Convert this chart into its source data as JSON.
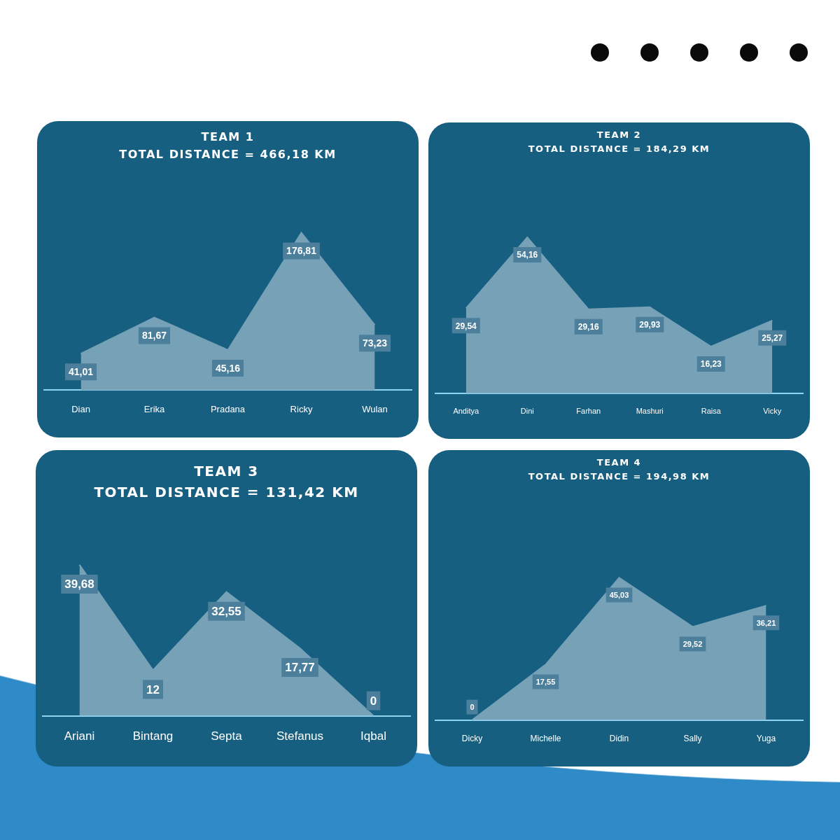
{
  "chart_data": [
    {
      "type": "area",
      "title": "TEAM 1",
      "subtitle": "TOTAL DISTANCE = 466,18 KM",
      "categories": [
        "Dian",
        "Erika",
        "Pradana",
        "Ricky",
        "Wulan"
      ],
      "values": [
        41.01,
        81.67,
        45.16,
        176.81,
        73.23
      ],
      "value_labels": [
        "41,01",
        "81,67",
        "45,16",
        "176,81",
        "73,23"
      ],
      "color": "#76a1b6",
      "grid": false,
      "legend": false,
      "marker": "none",
      "tick_labels": "x"
    },
    {
      "type": "area",
      "title": "TEAM 2",
      "subtitle": "TOTAL DISTANCE = 184,29 KM",
      "categories": [
        "Anditya",
        "Dini",
        "Farhan",
        "Mashuri",
        "Raisa",
        "Vicky"
      ],
      "values": [
        29.54,
        54.16,
        29.16,
        29.93,
        16.23,
        25.27
      ],
      "value_labels": [
        "29,54",
        "54,16",
        "29,16",
        "29,93",
        "16,23",
        "25,27"
      ],
      "color": "#76a1b6",
      "grid": false,
      "legend": false,
      "marker": "none",
      "tick_labels": "x"
    },
    {
      "type": "area",
      "title": "TEAM 3",
      "subtitle": "TOTAL DISTANCE = 131,42 KM",
      "categories": [
        "Ariani",
        "Bintang",
        "Septa",
        "Stefanus",
        "Iqbal"
      ],
      "values": [
        39.68,
        12,
        32.55,
        17.77,
        0
      ],
      "value_labels": [
        "39,68",
        "12",
        "32,55",
        "17,77",
        "0"
      ],
      "color": "#76a1b6",
      "grid": false,
      "legend": false,
      "marker": "none",
      "tick_labels": "x"
    },
    {
      "type": "area",
      "title": "TEAM 4",
      "subtitle": "TOTAL DISTANCE = 194,98 KM",
      "categories": [
        "Dicky",
        "Michelle",
        "Didin",
        "Sally",
        "Yuga"
      ],
      "values": [
        0,
        17.55,
        45.03,
        29.52,
        36.21
      ],
      "value_labels": [
        "0",
        "17,55",
        "45,03",
        "29,52",
        "36,21"
      ],
      "color": "#76a1b6",
      "grid": false,
      "legend": false,
      "marker": "none",
      "tick_labels": "x"
    }
  ]
}
